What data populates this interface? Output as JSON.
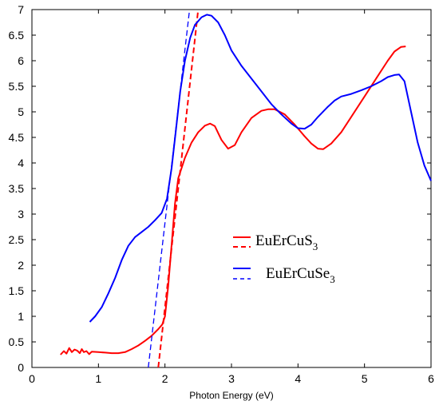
{
  "chart_data": {
    "type": "line",
    "title": "",
    "xlabel": "Photon Energy (eV)",
    "ylabel": "",
    "xlim": [
      0,
      6
    ],
    "ylim": [
      0,
      7
    ],
    "x_ticks": [
      0,
      1,
      2,
      3,
      4,
      5,
      6
    ],
    "y_ticks": [
      0,
      0.5,
      1,
      1.5,
      2,
      2.5,
      3,
      3.5,
      4,
      4.5,
      5,
      5.5,
      6,
      6.5,
      7
    ],
    "grid": false,
    "legend_position": "center-right",
    "legend": [
      {
        "label": "EuErCuS",
        "subscript": "3",
        "color": "#ff0000"
      },
      {
        "label": "EuErCuSe",
        "subscript": "3",
        "color": "#0000ff"
      }
    ],
    "series": [
      {
        "name": "EuErCuS3",
        "style": "solid",
        "color": "#ff0000",
        "points": [
          [
            0.43,
            0.25
          ],
          [
            0.48,
            0.32
          ],
          [
            0.52,
            0.27
          ],
          [
            0.56,
            0.38
          ],
          [
            0.6,
            0.3
          ],
          [
            0.64,
            0.35
          ],
          [
            0.68,
            0.33
          ],
          [
            0.72,
            0.28
          ],
          [
            0.75,
            0.36
          ],
          [
            0.78,
            0.3
          ],
          [
            0.82,
            0.32
          ],
          [
            0.86,
            0.26
          ],
          [
            0.9,
            0.31
          ],
          [
            1.0,
            0.3
          ],
          [
            1.1,
            0.29
          ],
          [
            1.2,
            0.28
          ],
          [
            1.3,
            0.28
          ],
          [
            1.4,
            0.3
          ],
          [
            1.5,
            0.36
          ],
          [
            1.6,
            0.43
          ],
          [
            1.7,
            0.52
          ],
          [
            1.8,
            0.62
          ],
          [
            1.9,
            0.75
          ],
          [
            1.96,
            0.84
          ],
          [
            2.0,
            1.0
          ],
          [
            2.05,
            1.6
          ],
          [
            2.1,
            2.4
          ],
          [
            2.15,
            3.2
          ],
          [
            2.2,
            3.7
          ],
          [
            2.3,
            4.1
          ],
          [
            2.4,
            4.4
          ],
          [
            2.5,
            4.6
          ],
          [
            2.6,
            4.73
          ],
          [
            2.68,
            4.77
          ],
          [
            2.75,
            4.72
          ],
          [
            2.85,
            4.45
          ],
          [
            2.95,
            4.28
          ],
          [
            3.05,
            4.35
          ],
          [
            3.15,
            4.6
          ],
          [
            3.3,
            4.88
          ],
          [
            3.45,
            5.02
          ],
          [
            3.55,
            5.05
          ],
          [
            3.65,
            5.05
          ],
          [
            3.8,
            4.95
          ],
          [
            3.95,
            4.75
          ],
          [
            4.1,
            4.52
          ],
          [
            4.2,
            4.38
          ],
          [
            4.3,
            4.28
          ],
          [
            4.38,
            4.27
          ],
          [
            4.5,
            4.38
          ],
          [
            4.65,
            4.6
          ],
          [
            4.8,
            4.9
          ],
          [
            5.0,
            5.3
          ],
          [
            5.2,
            5.7
          ],
          [
            5.35,
            6.0
          ],
          [
            5.45,
            6.18
          ],
          [
            5.55,
            6.27
          ],
          [
            5.62,
            6.28
          ]
        ]
      },
      {
        "name": "EuErCuS3 fit",
        "style": "dashed",
        "color": "#ff0000",
        "points": [
          [
            1.9,
            0
          ],
          [
            2.5,
            7
          ]
        ]
      },
      {
        "name": "EuErCuSe3",
        "style": "solid",
        "color": "#0000ff",
        "points": [
          [
            0.87,
            0.89
          ],
          [
            0.95,
            1.0
          ],
          [
            1.05,
            1.18
          ],
          [
            1.15,
            1.45
          ],
          [
            1.25,
            1.75
          ],
          [
            1.35,
            2.1
          ],
          [
            1.45,
            2.38
          ],
          [
            1.55,
            2.55
          ],
          [
            1.65,
            2.65
          ],
          [
            1.75,
            2.75
          ],
          [
            1.85,
            2.88
          ],
          [
            1.95,
            3.02
          ],
          [
            2.03,
            3.3
          ],
          [
            2.1,
            3.9
          ],
          [
            2.17,
            4.7
          ],
          [
            2.23,
            5.4
          ],
          [
            2.3,
            6.0
          ],
          [
            2.38,
            6.45
          ],
          [
            2.45,
            6.7
          ],
          [
            2.55,
            6.85
          ],
          [
            2.63,
            6.9
          ],
          [
            2.7,
            6.88
          ],
          [
            2.8,
            6.75
          ],
          [
            2.9,
            6.5
          ],
          [
            3.0,
            6.2
          ],
          [
            3.15,
            5.9
          ],
          [
            3.3,
            5.65
          ],
          [
            3.45,
            5.4
          ],
          [
            3.6,
            5.15
          ],
          [
            3.75,
            4.95
          ],
          [
            3.9,
            4.77
          ],
          [
            4.0,
            4.68
          ],
          [
            4.1,
            4.67
          ],
          [
            4.2,
            4.75
          ],
          [
            4.3,
            4.9
          ],
          [
            4.45,
            5.1
          ],
          [
            4.55,
            5.22
          ],
          [
            4.65,
            5.3
          ],
          [
            4.8,
            5.35
          ],
          [
            4.95,
            5.42
          ],
          [
            5.1,
            5.5
          ],
          [
            5.25,
            5.6
          ],
          [
            5.35,
            5.68
          ],
          [
            5.45,
            5.72
          ],
          [
            5.52,
            5.73
          ],
          [
            5.6,
            5.6
          ],
          [
            5.7,
            5.0
          ],
          [
            5.8,
            4.4
          ],
          [
            5.9,
            3.95
          ],
          [
            6.0,
            3.65
          ]
        ]
      },
      {
        "name": "EuErCuSe3 fit",
        "style": "dashed",
        "color": "#0000ff",
        "points": [
          [
            1.75,
            0
          ],
          [
            2.37,
            7
          ]
        ]
      }
    ]
  }
}
